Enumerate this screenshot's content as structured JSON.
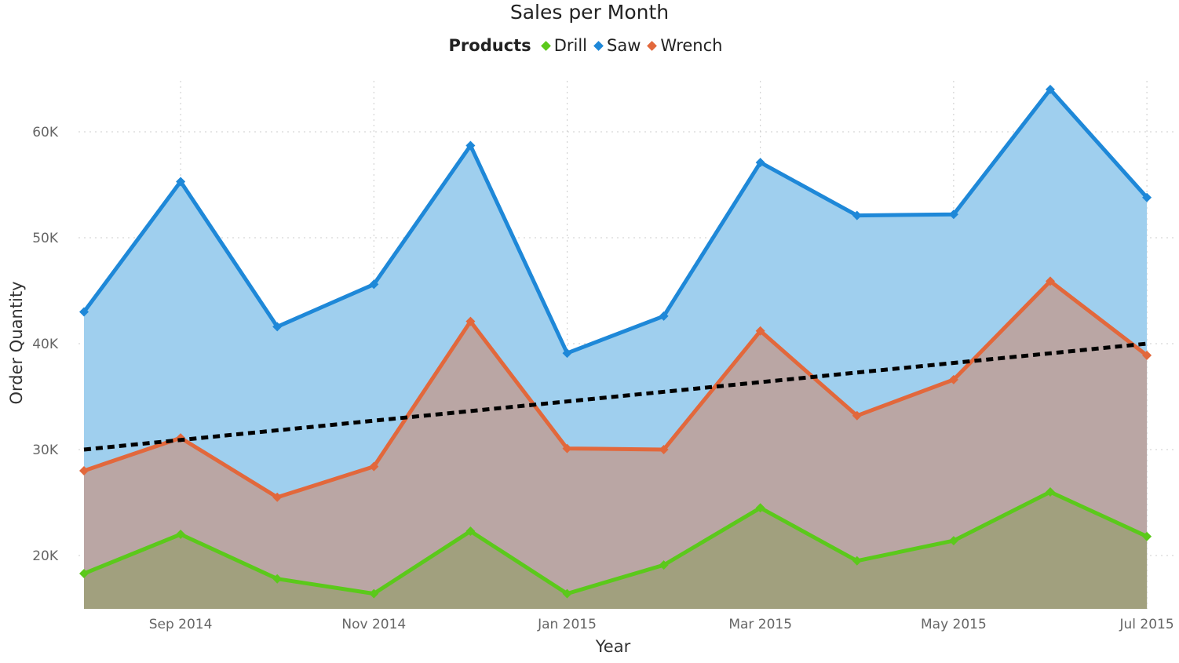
{
  "chart_data": {
    "type": "area",
    "title": "Sales per Month",
    "xlabel": "Year",
    "ylabel": "Order Quantity",
    "legend_title": "Products",
    "legend_position": "top-center",
    "grid": true,
    "ylim": [
      15000,
      65000
    ],
    "y_ticks": [
      20000,
      30000,
      40000,
      50000,
      60000
    ],
    "y_tick_labels": [
      "20K",
      "30K",
      "40K",
      "50K",
      "60K"
    ],
    "x": [
      "Aug 2014",
      "Sep 2014",
      "Oct 2014",
      "Nov 2014",
      "Dec 2014",
      "Jan 2015",
      "Feb 2015",
      "Mar 2015",
      "Apr 2015",
      "May 2015",
      "Jun 2015",
      "Jul 2015"
    ],
    "x_ticks": [
      "Sep 2014",
      "Nov 2014",
      "Jan 2015",
      "Mar 2015",
      "May 2015",
      "Jul 2015"
    ],
    "series": [
      {
        "name": "Saw",
        "color": "#1E88D8",
        "fill": "#9FCFEE",
        "values": [
          43000,
          55300,
          41600,
          45600,
          58700,
          39100,
          42600,
          57100,
          52100,
          52200,
          64000,
          53800
        ]
      },
      {
        "name": "Wrench",
        "color": "#E2683C",
        "fill": "#BAA6A4",
        "values": [
          28000,
          31100,
          25500,
          28400,
          42100,
          30100,
          30000,
          41200,
          33200,
          36600,
          45900,
          38900
        ]
      },
      {
        "name": "Drill",
        "color": "#5BC91B",
        "fill": "#A1A07E",
        "values": [
          18300,
          22000,
          17800,
          16400,
          22300,
          16400,
          19100,
          24500,
          19500,
          21400,
          26000,
          21800
        ]
      }
    ],
    "legend_order": [
      "Drill",
      "Saw",
      "Wrench"
    ],
    "trend_line": {
      "style": "dashed",
      "color": "#000000",
      "start_value": 30000,
      "end_value": 40000
    }
  }
}
